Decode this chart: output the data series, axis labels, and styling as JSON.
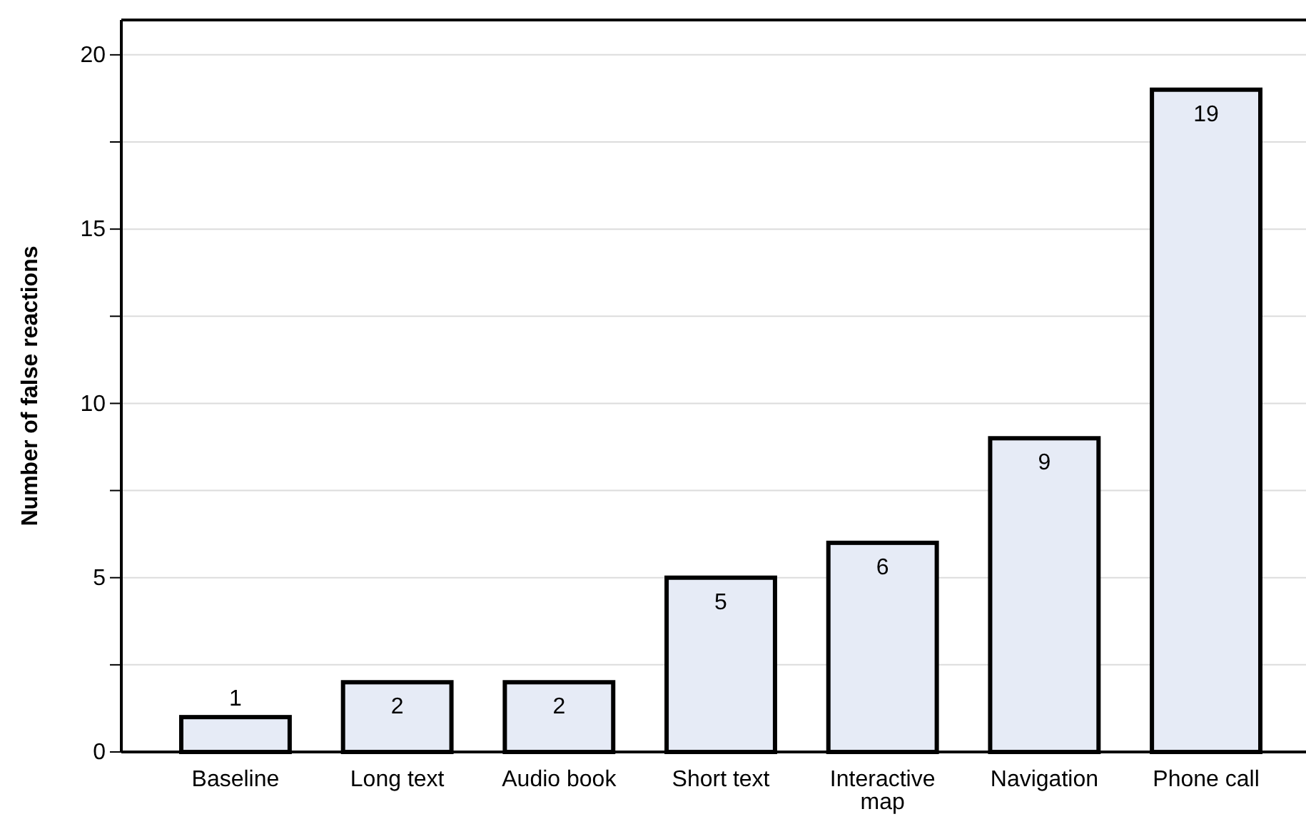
{
  "chart_data": {
    "type": "bar",
    "ylabel": "Number of false reactions",
    "categories": [
      "Baseline",
      "Long text",
      "Audio book",
      "Short text",
      "Interactive map",
      "Navigation",
      "Phone call"
    ],
    "values": [
      1,
      2,
      2,
      5,
      6,
      9,
      19
    ],
    "color": "#e6ebf6",
    "ylim": [
      0,
      21
    ],
    "yticks": [
      0,
      {
        "value": 2.5,
        "label": null
      },
      5,
      {
        "value": 7.5,
        "label": null
      },
      10,
      {
        "value": 12.5,
        "label": null
      },
      15,
      {
        "value": 17.5,
        "label": null
      },
      20
    ],
    "grid": "y",
    "data_labels": true
  }
}
